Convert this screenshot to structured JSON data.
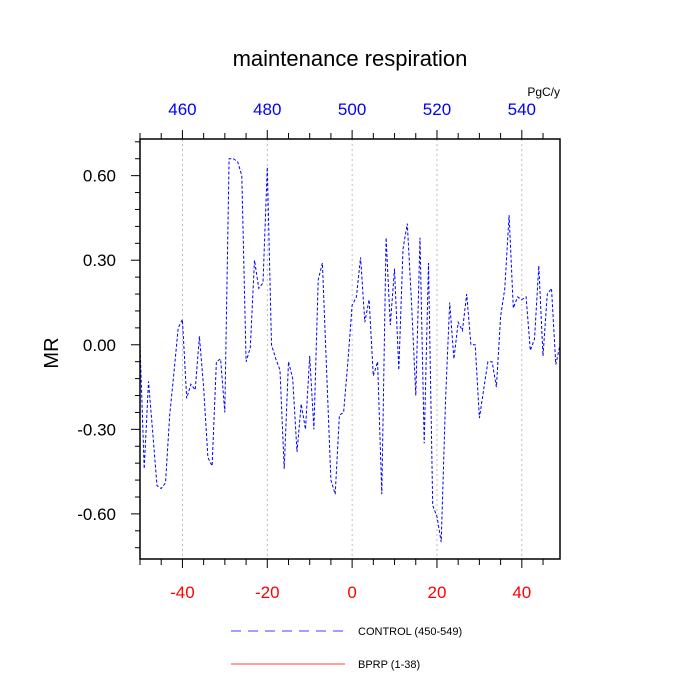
{
  "chart_data": {
    "type": "line",
    "title": "maintenance respiration",
    "ylabel": "MR",
    "top_axis_units": "PgC/y",
    "xlim": [
      -50,
      49
    ],
    "ylim": [
      -0.76,
      0.73
    ],
    "x_ticks": [
      "-40",
      "-20",
      "0",
      "20",
      "40"
    ],
    "x_tick_values": [
      -40,
      -20,
      0,
      20,
      40
    ],
    "x_ticks_color": "#ff0000",
    "top_ticks": [
      "460",
      "480",
      "500",
      "520",
      "540"
    ],
    "top_tick_values": [
      -40,
      -20,
      0,
      20,
      40
    ],
    "top_ticks_color": "#0000ff",
    "y_ticks": [
      "0.60",
      "0.30",
      "0.00",
      "-0.30",
      "-0.60"
    ],
    "y_tick_values": [
      0.6,
      0.3,
      0.0,
      -0.3,
      -0.6
    ],
    "grid": "vertical dotted at major x ticks",
    "legend_placement": "bottom-center",
    "series": [
      {
        "name": "CONTROL (450-549)",
        "color": "#0000ff",
        "style": "dashed",
        "x": [
          -50,
          -49,
          -48,
          -47,
          -46,
          -45,
          -44,
          -43,
          -42,
          -41,
          -40,
          -39,
          -38,
          -37,
          -36,
          -35,
          -34,
          -33,
          -32,
          -31,
          -30,
          -29,
          -28,
          -27,
          -26,
          -25,
          -24,
          -23,
          -22,
          -21,
          -20,
          -19,
          -18,
          -17,
          -16,
          -15,
          -14,
          -13,
          -12,
          -11,
          -10,
          -9,
          -8,
          -7,
          -6,
          -5,
          -4,
          -3,
          -2,
          -1,
          0,
          1,
          2,
          3,
          4,
          5,
          6,
          7,
          8,
          9,
          10,
          11,
          12,
          13,
          14,
          15,
          16,
          17,
          18,
          19,
          20,
          21,
          22,
          23,
          24,
          25,
          26,
          27,
          28,
          29,
          30,
          31,
          32,
          33,
          34,
          35,
          36,
          37,
          38,
          39,
          40,
          41,
          42,
          43,
          44,
          45,
          46,
          47,
          48,
          49
        ],
        "y": [
          0.0,
          -0.44,
          -0.13,
          -0.31,
          -0.5,
          -0.51,
          -0.49,
          -0.25,
          -0.1,
          0.06,
          0.09,
          -0.19,
          -0.14,
          -0.16,
          0.03,
          -0.15,
          -0.4,
          -0.43,
          -0.06,
          -0.05,
          -0.24,
          0.66,
          0.66,
          0.65,
          0.6,
          -0.06,
          -0.01,
          0.3,
          0.2,
          0.22,
          0.63,
          0.0,
          -0.05,
          -0.09,
          -0.44,
          -0.06,
          -0.12,
          -0.38,
          -0.21,
          -0.3,
          -0.04,
          -0.3,
          0.23,
          0.29,
          -0.1,
          -0.48,
          -0.53,
          -0.25,
          -0.24,
          -0.06,
          0.14,
          0.17,
          0.31,
          0.08,
          0.16,
          -0.11,
          -0.06,
          -0.53,
          0.38,
          0.07,
          0.27,
          -0.09,
          0.34,
          0.43,
          0.15,
          -0.18,
          0.38,
          -0.35,
          0.29,
          -0.57,
          -0.61,
          -0.7,
          -0.2,
          0.15,
          -0.05,
          0.08,
          0.05,
          0.18,
          0.0,
          0.0,
          -0.26,
          -0.16,
          -0.06,
          -0.06,
          -0.15,
          0.1,
          0.2,
          0.46,
          0.13,
          0.17,
          0.16,
          0.17,
          -0.02,
          0.02,
          0.28,
          -0.04,
          0.18,
          0.2,
          -0.07,
          0.0
        ]
      },
      {
        "name": "BPRP (1-38)",
        "color": "#ff0000",
        "style": "solid",
        "x": [],
        "y": []
      }
    ]
  }
}
